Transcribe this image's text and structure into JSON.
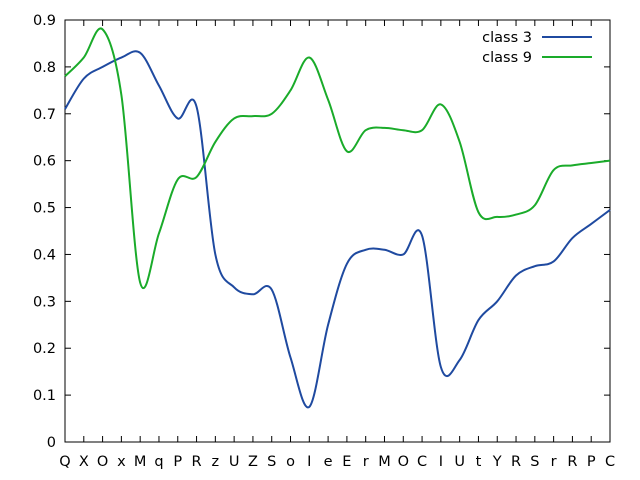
{
  "chart_data": {
    "type": "line",
    "title": "",
    "xlabel": "",
    "ylabel": "",
    "categories": [
      "Q",
      "X",
      "O",
      "x",
      "M",
      "q",
      "P",
      "R",
      "z",
      "U",
      "Z",
      "S",
      "o",
      "I",
      "e",
      "E",
      "r",
      "M",
      "O",
      "C",
      "I",
      "U",
      "t",
      "Y",
      "R",
      "S",
      "r",
      "R",
      "P",
      "C"
    ],
    "ylim": [
      0,
      0.9
    ],
    "yticks": [
      "0",
      "0.1",
      "0.2",
      "0.3",
      "0.4",
      "0.5",
      "0.6",
      "0.7",
      "0.8",
      "0.9"
    ],
    "grid": false,
    "legend_position": "top-right",
    "series": [
      {
        "name": "class 3",
        "color": "#1f4aa0",
        "values": [
          0.71,
          0.775,
          0.8,
          0.82,
          0.83,
          0.76,
          0.69,
          0.715,
          0.4,
          0.33,
          0.315,
          0.325,
          0.18,
          0.075,
          0.25,
          0.38,
          0.41,
          0.41,
          0.4,
          0.44,
          0.16,
          0.175,
          0.26,
          0.3,
          0.355,
          0.375,
          0.385,
          0.435,
          0.465,
          0.495
        ]
      },
      {
        "name": "class 9",
        "color": "#1aab2a",
        "values": [
          0.78,
          0.82,
          0.88,
          0.74,
          0.34,
          0.445,
          0.56,
          0.565,
          0.64,
          0.69,
          0.695,
          0.7,
          0.75,
          0.82,
          0.73,
          0.62,
          0.665,
          0.67,
          0.665,
          0.665,
          0.72,
          0.64,
          0.49,
          0.48,
          0.485,
          0.505,
          0.58,
          0.59,
          0.595,
          0.6
        ]
      }
    ]
  }
}
